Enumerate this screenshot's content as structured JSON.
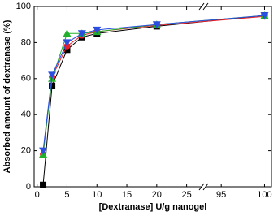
{
  "chart_data": {
    "type": "line",
    "xlabel": "[Dextranase] U/g nanogel",
    "ylabel": "Absorbed amount of dextranase (%)",
    "x": [
      1,
      2.5,
      5,
      7.5,
      10,
      20,
      100
    ],
    "series": [
      {
        "color": "#000000",
        "marker": "square",
        "values": [
          1,
          56,
          76,
          83,
          85,
          89,
          95
        ]
      },
      {
        "color": "#e8202a",
        "marker": "circle",
        "values": [
          18,
          61,
          78,
          84,
          86,
          89.5,
          94.5
        ]
      },
      {
        "color": "#22b02c",
        "marker": "triangle-up",
        "values": [
          18,
          60,
          85,
          85,
          86,
          90,
          95
        ]
      },
      {
        "color": "#2a4ee0",
        "marker": "triangle-down",
        "values": [
          20,
          62,
          80,
          85,
          87,
          90,
          95
        ]
      }
    ],
    "xlim": [
      [
        -0.5,
        27.5
      ],
      [
        93.2,
        100.8
      ]
    ],
    "xticks": [
      0,
      5,
      10,
      15,
      20,
      25,
      95,
      100
    ],
    "ylim": [
      0,
      100
    ],
    "yticks": [
      0,
      20,
      40,
      60,
      80,
      100
    ],
    "grid": false
  }
}
